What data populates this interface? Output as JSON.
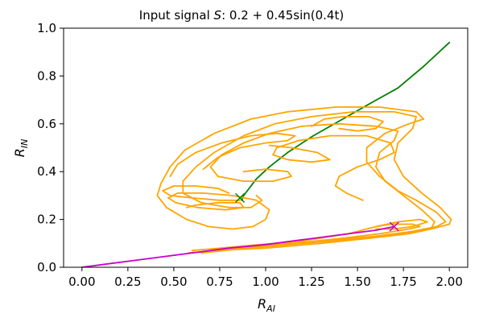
{
  "chart_data": {
    "type": "line",
    "title": "Input signal S: 0.2 + 0.45sin(0.4t)",
    "title_parts": {
      "prefix": "Input signal ",
      "symbol": "S",
      "suffix": ": 0.2 + 0.45sin(0.4t)"
    },
    "xlabel": {
      "main": "R",
      "sub": "AI"
    },
    "ylabel": {
      "main": "R",
      "sub": "IN"
    },
    "xlim": [
      -0.1,
      2.1
    ],
    "ylim": [
      0.0,
      1.0
    ],
    "xticks": [
      "0.00",
      "0.25",
      "0.50",
      "0.75",
      "1.00",
      "1.25",
      "1.50",
      "1.75",
      "2.00"
    ],
    "yticks": [
      "0.0",
      "0.2",
      "0.4",
      "0.6",
      "0.8",
      "1.0"
    ],
    "grid": false,
    "series": [
      {
        "color": "#008000",
        "points": [
          [
            2.0,
            0.94
          ],
          [
            1.86,
            0.84
          ],
          [
            1.72,
            0.75
          ],
          [
            1.58,
            0.69
          ],
          [
            1.42,
            0.62
          ],
          [
            1.26,
            0.55
          ],
          [
            1.12,
            0.48
          ],
          [
            1.02,
            0.42
          ],
          [
            0.95,
            0.37
          ],
          [
            0.91,
            0.33
          ],
          [
            0.88,
            0.3
          ],
          [
            0.87,
            0.28
          ]
        ]
      },
      {
        "color": "#ffa500",
        "points": [
          [
            0.58,
            0.06
          ],
          [
            0.75,
            0.07
          ],
          [
            1.0,
            0.09
          ],
          [
            1.3,
            0.11
          ],
          [
            1.6,
            0.13
          ],
          [
            1.8,
            0.15
          ],
          [
            1.93,
            0.17
          ],
          [
            1.98,
            0.19
          ],
          [
            1.93,
            0.23
          ],
          [
            1.82,
            0.28
          ],
          [
            1.72,
            0.32
          ],
          [
            1.62,
            0.38
          ],
          [
            1.55,
            0.44
          ],
          [
            1.55,
            0.5
          ],
          [
            1.65,
            0.56
          ],
          [
            1.78,
            0.6
          ],
          [
            1.86,
            0.62
          ],
          [
            1.82,
            0.65
          ],
          [
            1.62,
            0.67
          ],
          [
            1.38,
            0.67
          ],
          [
            1.12,
            0.65
          ],
          [
            0.92,
            0.62
          ],
          [
            0.72,
            0.56
          ],
          [
            0.56,
            0.49
          ],
          [
            0.48,
            0.42
          ],
          [
            0.43,
            0.35
          ],
          [
            0.41,
            0.3
          ],
          [
            0.46,
            0.25
          ],
          [
            0.57,
            0.2
          ],
          [
            0.69,
            0.17
          ],
          [
            0.82,
            0.16
          ],
          [
            0.93,
            0.17
          ],
          [
            1.0,
            0.2
          ],
          [
            1.02,
            0.24
          ],
          [
            0.95,
            0.28
          ],
          [
            0.82,
            0.3
          ],
          [
            0.66,
            0.31
          ],
          [
            0.52,
            0.31
          ],
          [
            0.47,
            0.29
          ],
          [
            0.51,
            0.27
          ],
          [
            0.63,
            0.25
          ],
          [
            0.78,
            0.24
          ],
          [
            0.88,
            0.25
          ],
          [
            0.86,
            0.27
          ],
          [
            0.74,
            0.27
          ],
          [
            0.62,
            0.26
          ],
          [
            0.57,
            0.25
          ]
        ]
      },
      {
        "color": "#ffa500",
        "points": [
          [
            0.65,
            0.06
          ],
          [
            0.9,
            0.08
          ],
          [
            1.2,
            0.1
          ],
          [
            1.5,
            0.12
          ],
          [
            1.75,
            0.14
          ],
          [
            1.9,
            0.16
          ],
          [
            2.0,
            0.18
          ],
          [
            2.01,
            0.2
          ],
          [
            1.95,
            0.25
          ],
          [
            1.85,
            0.31
          ],
          [
            1.75,
            0.38
          ],
          [
            1.7,
            0.45
          ],
          [
            1.72,
            0.52
          ],
          [
            1.8,
            0.58
          ],
          [
            1.82,
            0.63
          ],
          [
            1.7,
            0.65
          ],
          [
            1.48,
            0.65
          ],
          [
            1.25,
            0.63
          ],
          [
            1.05,
            0.6
          ],
          [
            0.88,
            0.55
          ],
          [
            0.72,
            0.48
          ],
          [
            0.62,
            0.42
          ],
          [
            0.55,
            0.36
          ],
          [
            0.55,
            0.31
          ],
          [
            0.65,
            0.27
          ],
          [
            0.8,
            0.25
          ],
          [
            0.92,
            0.25
          ],
          [
            0.98,
            0.28
          ],
          [
            0.95,
            0.3
          ]
        ]
      },
      {
        "color": "#ffa500",
        "points": [
          [
            0.72,
            0.07
          ],
          [
            1.0,
            0.08
          ],
          [
            1.3,
            0.1
          ],
          [
            1.55,
            0.12
          ],
          [
            1.78,
            0.14
          ],
          [
            1.9,
            0.16
          ],
          [
            1.92,
            0.19
          ],
          [
            1.85,
            0.24
          ],
          [
            1.75,
            0.3
          ],
          [
            1.65,
            0.36
          ],
          [
            1.6,
            0.42
          ],
          [
            1.62,
            0.48
          ],
          [
            1.7,
            0.53
          ],
          [
            1.72,
            0.57
          ],
          [
            1.6,
            0.59
          ],
          [
            1.4,
            0.6
          ],
          [
            1.2,
            0.59
          ],
          [
            1.02,
            0.56
          ],
          [
            0.88,
            0.52
          ],
          [
            0.76,
            0.47
          ],
          [
            0.7,
            0.42
          ],
          [
            0.74,
            0.38
          ],
          [
            0.88,
            0.36
          ],
          [
            1.04,
            0.36
          ],
          [
            1.14,
            0.38
          ],
          [
            1.12,
            0.4
          ],
          [
            1.0,
            0.41
          ],
          [
            0.88,
            0.4
          ]
        ]
      },
      {
        "color": "#ffa500",
        "points": [
          [
            1.53,
            0.28
          ],
          [
            1.44,
            0.31
          ],
          [
            1.38,
            0.34
          ],
          [
            1.4,
            0.38
          ],
          [
            1.5,
            0.42
          ],
          [
            1.62,
            0.45
          ],
          [
            1.7,
            0.48
          ],
          [
            1.68,
            0.52
          ],
          [
            1.55,
            0.55
          ],
          [
            1.35,
            0.55
          ],
          [
            1.18,
            0.53
          ],
          [
            1.06,
            0.5
          ],
          [
            1.04,
            0.47
          ],
          [
            1.12,
            0.45
          ],
          [
            1.25,
            0.44
          ],
          [
            1.35,
            0.45
          ],
          [
            1.28,
            0.48
          ],
          [
            1.14,
            0.5
          ],
          [
            1.02,
            0.51
          ]
        ]
      },
      {
        "color": "#ffa500",
        "points": [
          [
            0.6,
            0.07
          ],
          [
            0.9,
            0.09
          ],
          [
            1.2,
            0.11
          ],
          [
            1.45,
            0.14
          ],
          [
            1.6,
            0.17
          ],
          [
            1.72,
            0.19
          ],
          [
            1.84,
            0.2
          ],
          [
            1.88,
            0.19
          ],
          [
            1.8,
            0.17
          ],
          [
            1.7,
            0.16
          ],
          [
            1.6,
            0.16
          ]
        ]
      },
      {
        "color": "#ffa500",
        "points": [
          [
            0.92,
            0.09
          ],
          [
            1.15,
            0.1
          ],
          [
            1.4,
            0.12
          ],
          [
            1.62,
            0.14
          ],
          [
            1.78,
            0.16
          ],
          [
            1.84,
            0.17
          ],
          [
            1.8,
            0.18
          ],
          [
            1.68,
            0.18
          ],
          [
            1.6,
            0.17
          ]
        ]
      },
      {
        "color": "#ffa500",
        "points": [
          [
            0.86,
            0.28
          ],
          [
            0.75,
            0.28
          ],
          [
            0.6,
            0.29
          ],
          [
            0.48,
            0.3
          ],
          [
            0.44,
            0.32
          ],
          [
            0.5,
            0.34
          ],
          [
            0.62,
            0.34
          ],
          [
            0.74,
            0.33
          ],
          [
            0.8,
            0.31
          ]
        ]
      },
      {
        "color": "#ffa500",
        "points": [
          [
            0.48,
            0.38
          ],
          [
            0.52,
            0.43
          ],
          [
            0.62,
            0.48
          ],
          [
            0.76,
            0.52
          ],
          [
            0.92,
            0.55
          ],
          [
            1.06,
            0.56
          ],
          [
            1.16,
            0.55
          ],
          [
            1.12,
            0.53
          ],
          [
            1.0,
            0.52
          ],
          [
            0.86,
            0.5
          ],
          [
            0.74,
            0.46
          ],
          [
            0.66,
            0.41
          ]
        ]
      },
      {
        "color": "#ffa500",
        "points": [
          [
            1.25,
            0.59
          ],
          [
            1.32,
            0.62
          ],
          [
            1.42,
            0.63
          ],
          [
            1.56,
            0.63
          ],
          [
            1.64,
            0.61
          ],
          [
            1.6,
            0.58
          ],
          [
            1.5,
            0.57
          ],
          [
            1.4,
            0.58
          ]
        ]
      },
      {
        "color": "#cc00cc",
        "points": [
          [
            0.0,
            0.0
          ],
          [
            0.4,
            0.04
          ],
          [
            0.8,
            0.08
          ],
          [
            1.0,
            0.095
          ],
          [
            1.2,
            0.115
          ],
          [
            1.4,
            0.135
          ],
          [
            1.6,
            0.155
          ],
          [
            1.7,
            0.17
          ]
        ]
      }
    ],
    "markers": [
      {
        "symbol": "x",
        "color": "#008000",
        "x": 0.86,
        "y": 0.29
      },
      {
        "symbol": "x",
        "color": "#cc00cc",
        "x": 1.7,
        "y": 0.17
      }
    ]
  }
}
